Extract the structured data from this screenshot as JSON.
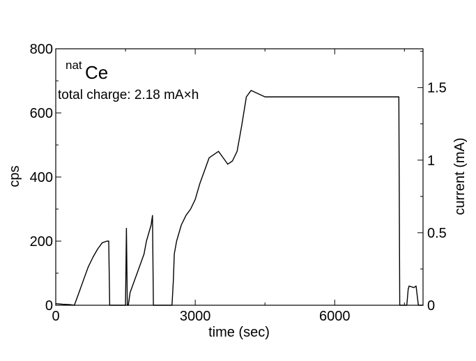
{
  "chart_data": {
    "type": "line",
    "title": "",
    "xlabel": "time (sec)",
    "ylabel": "cps",
    "y2label": "current (mA)",
    "xlim": [
      0,
      7900
    ],
    "ylim": [
      0,
      800
    ],
    "y2lim": [
      0,
      1.7674
    ],
    "x_ticks": [
      0,
      3000,
      6000
    ],
    "y_ticks": [
      0,
      200,
      400,
      600,
      800
    ],
    "y2_ticks": [
      0,
      0.5,
      1,
      1.5
    ],
    "x_tick_labels": [
      "0",
      "3000",
      "6000"
    ],
    "y_tick_labels": [
      "0",
      "200",
      "400",
      "600",
      "800"
    ],
    "y2_tick_labels": [
      "0",
      "0.5",
      "1",
      "1.5"
    ],
    "grid": false,
    "legend": "none",
    "annotations": {
      "element_superscript": "nat",
      "element_symbol": "Ce",
      "charge": "total charge: 2.18 mA×h"
    },
    "line_color": "#000000",
    "series": [
      {
        "x": [
          0,
          150,
          300,
          400,
          500,
          600,
          700,
          800,
          900,
          1000,
          1100,
          1140,
          1160,
          1500,
          1520,
          1540,
          1560,
          1600,
          1700,
          1800,
          1900,
          1950,
          2050,
          2080,
          2100,
          2500,
          2530,
          2550,
          2600,
          2700,
          2800,
          2900,
          3000,
          3100,
          3200,
          3300,
          3400,
          3500,
          3600,
          3700,
          3800,
          3900,
          4000,
          4100,
          4200,
          4500,
          5000,
          5500,
          6000,
          6500,
          7000,
          7300,
          7380,
          7400,
          7450,
          7500,
          7550,
          7580,
          7600,
          7700,
          7750,
          7800,
          7900
        ],
        "y": [
          5,
          3,
          2,
          0,
          40,
          80,
          120,
          150,
          175,
          195,
          200,
          200,
          0,
          0,
          240,
          0,
          0,
          40,
          80,
          120,
          160,
          200,
          250,
          280,
          0,
          0,
          80,
          160,
          200,
          250,
          280,
          300,
          330,
          380,
          420,
          460,
          470,
          480,
          460,
          440,
          450,
          480,
          560,
          650,
          670,
          650,
          650,
          650,
          650,
          650,
          650,
          650,
          650,
          0,
          0,
          0,
          0,
          50,
          60,
          55,
          60,
          0,
          0
        ]
      }
    ]
  }
}
